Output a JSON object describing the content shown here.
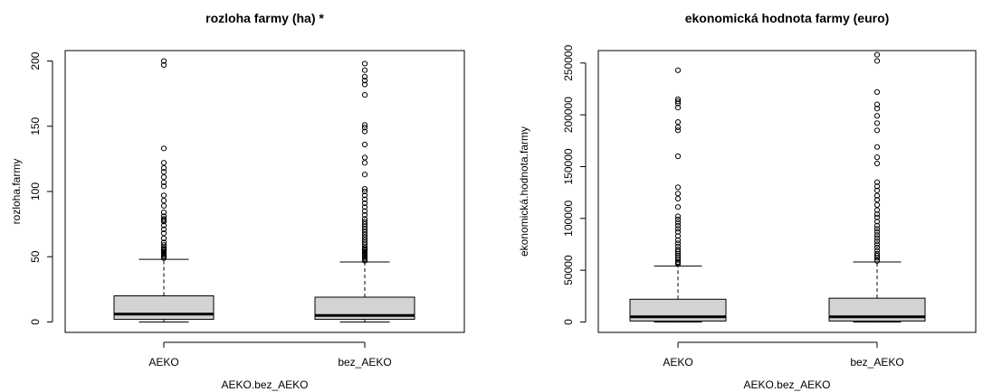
{
  "chart_data": [
    {
      "type": "boxplot",
      "title": "rozloha farmy (ha) *",
      "xlabel": "AEKO.bez_AEKO",
      "ylabel": "rozloha.farmy",
      "ylim": [
        -8,
        208
      ],
      "yticks": [
        0,
        50,
        100,
        150,
        200
      ],
      "categories": [
        "AEKO",
        "bez_AEKO"
      ],
      "boxes": [
        {
          "name": "AEKO",
          "whisker_low": 0,
          "q1": 2,
          "median": 6,
          "q3": 20,
          "whisker_high": 48,
          "outliers": [
            200,
            197,
            133,
            122,
            118,
            115,
            111,
            107,
            104,
            97,
            93,
            89,
            84,
            81,
            79,
            78,
            77,
            74,
            71,
            68,
            64,
            61,
            59,
            57,
            56,
            55,
            54,
            53,
            52,
            51,
            50,
            49
          ]
        },
        {
          "name": "bez_AEKO",
          "whisker_low": 0,
          "q1": 2,
          "median": 5,
          "q3": 19,
          "whisker_high": 46,
          "outliers": [
            198,
            193,
            188,
            185,
            182,
            174,
            151,
            149,
            146,
            136,
            126,
            122,
            113,
            102,
            100,
            97,
            94,
            91,
            88,
            85,
            82,
            79,
            77,
            75,
            73,
            71,
            69,
            67,
            65,
            63,
            61,
            59,
            57,
            56,
            55,
            54,
            53,
            52,
            51,
            50,
            49,
            48,
            47
          ]
        }
      ]
    },
    {
      "type": "boxplot",
      "title": "ekonomická hodnota farmy (euro)",
      "xlabel": "AEKO.bez_AEKO",
      "ylabel": "ekonomická.hodnota.farmy",
      "ylim": [
        -10000,
        262000
      ],
      "yticks": [
        0,
        50000,
        100000,
        150000,
        200000,
        250000
      ],
      "categories": [
        "AEKO",
        "bez_AEKO"
      ],
      "boxes": [
        {
          "name": "AEKO",
          "whisker_low": 0,
          "q1": 1000,
          "median": 5000,
          "q3": 22000,
          "whisker_high": 54000,
          "outliers": [
            243000,
            215000,
            213000,
            211000,
            207000,
            193000,
            188000,
            185000,
            160000,
            130000,
            124000,
            119000,
            111000,
            102000,
            99000,
            96000,
            93000,
            90000,
            87000,
            83000,
            79000,
            76000,
            73000,
            70000,
            68000,
            66000,
            64000,
            62000,
            60000,
            58000,
            57000,
            56000
          ]
        },
        {
          "name": "bez_AEKO",
          "whisker_low": 0,
          "q1": 1000,
          "median": 5000,
          "q3": 23000,
          "whisker_high": 58000,
          "outliers": [
            258000,
            252000,
            222000,
            210000,
            206000,
            199000,
            192000,
            185000,
            169000,
            159000,
            153000,
            135000,
            131000,
            127000,
            122000,
            118000,
            113000,
            108000,
            104000,
            101000,
            97000,
            93000,
            90000,
            87000,
            84000,
            81000,
            78000,
            75000,
            72000,
            69000,
            66000,
            64000,
            62000,
            60000,
            59000
          ]
        }
      ]
    }
  ]
}
